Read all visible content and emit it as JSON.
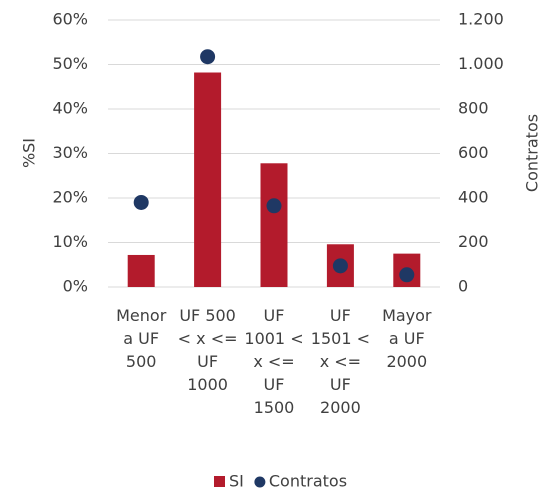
{
  "chart_data": {
    "type": "bar",
    "categories": [
      "Menor a UF 500",
      "UF 500 < x <= UF 1000",
      "UF 1001 < x <= UF 1500",
      "UF 1501 < x <= UF 2000",
      "Mayor a UF 2000"
    ],
    "series": [
      {
        "name": "SI",
        "color": "#b31b2c",
        "type": "bar",
        "values": [
          7.2,
          48.2,
          27.8,
          9.6,
          7.5
        ]
      },
      {
        "name": "Contratos",
        "color": "#1f3864",
        "type": "scatter",
        "axis": "y2",
        "values": [
          380,
          1035,
          365,
          95,
          55
        ]
      }
    ],
    "ylabel": "%SI",
    "y2label": "Contratos",
    "ylim": [
      0,
      60
    ],
    "yticks": [
      {
        "value": 0,
        "label": "0%"
      },
      {
        "value": 10,
        "label": "10%"
      },
      {
        "value": 20,
        "label": "20%"
      },
      {
        "value": 30,
        "label": "30%"
      },
      {
        "value": 40,
        "label": "40%"
      },
      {
        "value": 50,
        "label": "50%"
      },
      {
        "value": 60,
        "label": "60%"
      }
    ],
    "y2lim": [
      0,
      1200
    ],
    "y2ticks": [
      0,
      200,
      400,
      600,
      800,
      {
        "value": 1000,
        "label": "1.000"
      },
      {
        "value": 1200,
        "label": "1.200"
      }
    ],
    "grid": true,
    "legend": "bottom"
  }
}
